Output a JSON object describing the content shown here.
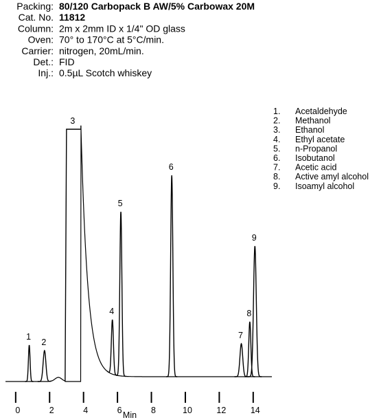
{
  "chart_data": {
    "type": "chromatogram",
    "details": [
      {
        "label": "Packing:",
        "value": "80/120 Carbopack B AW/5% Carbowax 20M"
      },
      {
        "label": "Cat. No.",
        "value": "11812"
      },
      {
        "label": "Column:",
        "value": "2m x 2mm ID x 1/4\" OD glass"
      },
      {
        "label": "Oven:",
        "value": "70° to 170°C at 5°C/min."
      },
      {
        "label": "Carrier:",
        "value": "nitrogen, 20mL/min."
      },
      {
        "label": "Det.:",
        "value": "FID"
      },
      {
        "label": "Inj.:",
        "value": "0.5µL Scotch whiskey"
      }
    ],
    "peaks": [
      {
        "number": "1",
        "legend_number": "1.",
        "name": "Acetaldehyde",
        "x": 0.8
      },
      {
        "number": "2",
        "legend_number": "2.",
        "name": "Methanol",
        "x": 1.7
      },
      {
        "number": "3",
        "legend_number": "3.",
        "name": "Ethanol",
        "x": 3.4
      },
      {
        "number": "4",
        "legend_number": "4.",
        "name": "Ethyl acetate",
        "x": 5.7
      },
      {
        "number": "5",
        "legend_number": "5.",
        "name": "n-Propanol",
        "x": 6.2
      },
      {
        "number": "6",
        "legend_number": "6.",
        "name": "Isobutanol",
        "x": 9.2
      },
      {
        "number": "7",
        "legend_number": "7.",
        "name": "Acetic acid",
        "x": 13.3
      },
      {
        "number": "8",
        "legend_number": "8.",
        "name": "Active amyl alcohol",
        "x": 13.8
      },
      {
        "number": "9",
        "legend_number": "9.",
        "name": "Isoamyl alcohol",
        "x": 14.1
      }
    ],
    "xlim": [
      -0.6,
      15.1
    ],
    "xticks": [
      0,
      2,
      4,
      6,
      8,
      10,
      12,
      14
    ],
    "xlabel": "Min"
  }
}
